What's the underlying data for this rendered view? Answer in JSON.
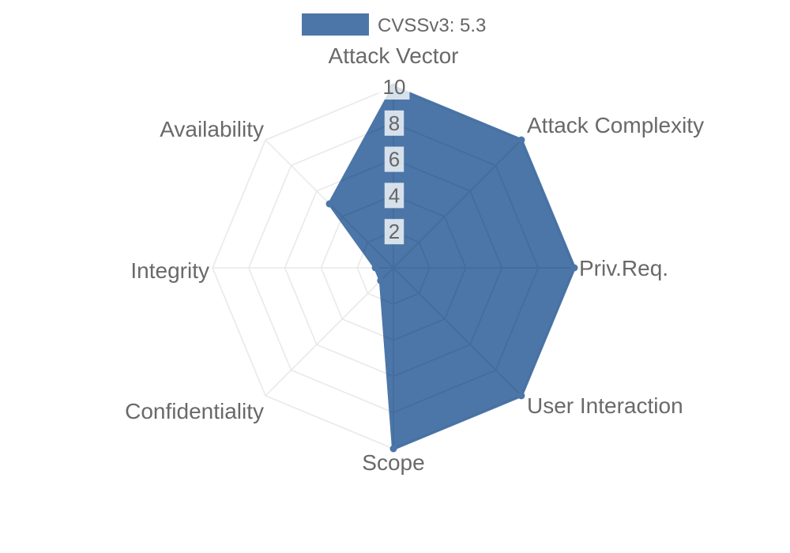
{
  "legend": {
    "label": "CVSSv3: 5.3",
    "position": "top"
  },
  "chart_data": {
    "type": "radar",
    "title": "CVSSv3: 5.3",
    "categories": [
      "Attack Vector",
      "Attack Complexity",
      "Priv.Req.",
      "User Interaction",
      "Scope",
      "Confidentiality",
      "Integrity",
      "Availability"
    ],
    "series": [
      {
        "name": "CVSSv3: 5.3",
        "values": [
          10,
          10,
          10,
          10,
          10,
          1,
          1,
          5
        ]
      }
    ],
    "rlim": [
      0,
      10
    ],
    "ticks": [
      2,
      4,
      6,
      8,
      10
    ],
    "grid": true,
    "legend_position": "top",
    "colors": {
      "fill": "#4c76a8",
      "line": "#4c76a8",
      "grid_light": "#e9e9e9",
      "grid_inner": "#3d6390",
      "label": "#696969",
      "tick": "#666666",
      "tick_backdrop": "rgba(255,255,255,0.78)"
    }
  }
}
